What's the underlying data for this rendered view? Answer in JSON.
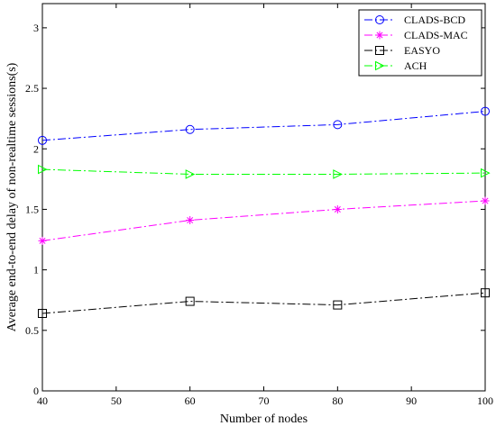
{
  "chart_data": {
    "type": "line",
    "title": "",
    "xlabel": "Number of nodes",
    "ylabel": "Average end-to-end delay of non-realtime sessions(s)",
    "xlim": [
      40,
      100
    ],
    "ylim": [
      0,
      3.2
    ],
    "x_ticks": [
      "40",
      "50",
      "60",
      "70",
      "80",
      "90",
      "100"
    ],
    "y_ticks": [
      "0",
      "0.5",
      "1",
      "1.5",
      "2",
      "2.5",
      "3"
    ],
    "x": [
      40,
      60,
      80,
      100
    ],
    "grid": false,
    "legend_position": "top-right",
    "series": [
      {
        "name": "CLADS-BCD",
        "values": [
          2.07,
          2.16,
          2.2,
          2.31
        ],
        "color": "#0000ff",
        "marker": "circle"
      },
      {
        "name": "CLADS-MAC",
        "values": [
          1.24,
          1.41,
          1.5,
          1.57
        ],
        "color": "#ff00ff",
        "marker": "star"
      },
      {
        "name": "EASYO",
        "values": [
          0.64,
          0.74,
          0.71,
          0.81
        ],
        "color": "#000000",
        "marker": "square"
      },
      {
        "name": "ACH",
        "values": [
          1.83,
          1.79,
          1.79,
          1.8
        ],
        "color": "#00ff00",
        "marker": "triangle-right"
      }
    ]
  }
}
